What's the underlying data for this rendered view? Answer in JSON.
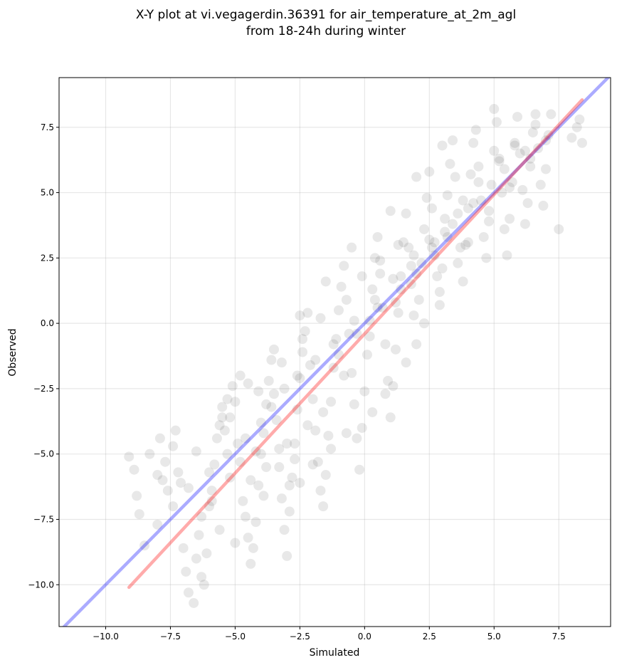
{
  "chart_data": {
    "type": "scatter",
    "title_line1": "X-Y plot at vi.vegagerdin.36391 for air_temperature_at_2m_agl",
    "title_line2": "from 18-24h during winter",
    "xlabel": "Simulated",
    "ylabel": "Observed",
    "xlim": [
      -11.8,
      9.5
    ],
    "ylim": [
      -11.6,
      9.4
    ],
    "xticks": [
      -10.0,
      -7.5,
      -5.0,
      -2.5,
      0.0,
      2.5,
      5.0,
      7.5
    ],
    "yticks": [
      -10.0,
      -7.5,
      -5.0,
      -2.5,
      0.0,
      2.5,
      5.0,
      7.5
    ],
    "xtick_labels": [
      "−10.0",
      "−7.5",
      "−5.0",
      "−2.5",
      "0.0",
      "2.5",
      "5.0",
      "7.5"
    ],
    "ytick_labels": [
      "−10.0",
      "−7.5",
      "−5.0",
      "−2.5",
      "0.0",
      "2.5",
      "5.0",
      "7.5"
    ],
    "grid": true,
    "point_color": "#000000",
    "point_alpha": 0.09,
    "identity_line": {
      "x": [
        -11.8,
        9.5
      ],
      "y": [
        -11.8,
        9.5
      ],
      "color": "#0000ff",
      "alpha": 0.33
    },
    "fit_line": {
      "x": [
        -9.1,
        8.4
      ],
      "y": [
        -10.1,
        8.55
      ],
      "color": "#ff0000",
      "alpha": 0.33
    },
    "points": [
      [
        -9.1,
        -5.1
      ],
      [
        -8.9,
        -5.6
      ],
      [
        -8.8,
        -6.6
      ],
      [
        -8.7,
        -7.3
      ],
      [
        -8.5,
        -8.5
      ],
      [
        -8.3,
        -5.0
      ],
      [
        -8.0,
        -5.8
      ],
      [
        -7.9,
        -4.4
      ],
      [
        -7.8,
        -6.0
      ],
      [
        -7.7,
        -5.3
      ],
      [
        -7.6,
        -6.4
      ],
      [
        -7.4,
        -4.7
      ],
      [
        -7.3,
        -4.1
      ],
      [
        -7.2,
        -5.7
      ],
      [
        -7.1,
        -6.1
      ],
      [
        -7.0,
        -8.6
      ],
      [
        -6.9,
        -9.5
      ],
      [
        -6.8,
        -10.3
      ],
      [
        -6.6,
        -10.7
      ],
      [
        -6.5,
        -9.0
      ],
      [
        -6.4,
        -8.1
      ],
      [
        -6.3,
        -9.7
      ],
      [
        -6.2,
        -10.0
      ],
      [
        -6.1,
        -8.8
      ],
      [
        -6.0,
        -7.0
      ],
      [
        -5.9,
        -6.4
      ],
      [
        -5.8,
        -5.4
      ],
      [
        -5.7,
        -4.4
      ],
      [
        -5.6,
        -3.9
      ],
      [
        -5.5,
        -3.2
      ],
      [
        -5.4,
        -4.1
      ],
      [
        -5.3,
        -2.9
      ],
      [
        -5.2,
        -3.6
      ],
      [
        -5.1,
        -2.4
      ],
      [
        -5.0,
        -3.0
      ],
      [
        -4.9,
        -4.6
      ],
      [
        -4.8,
        -2.0
      ],
      [
        -4.7,
        -6.8
      ],
      [
        -4.6,
        -7.4
      ],
      [
        -4.5,
        -8.2
      ],
      [
        -4.4,
        -9.2
      ],
      [
        -4.3,
        -8.6
      ],
      [
        -4.2,
        -7.6
      ],
      [
        -4.1,
        -6.2
      ],
      [
        -4.0,
        -5.0
      ],
      [
        -3.9,
        -4.2
      ],
      [
        -3.8,
        -3.1
      ],
      [
        -3.7,
        -2.2
      ],
      [
        -3.6,
        -1.4
      ],
      [
        -3.5,
        -2.7
      ],
      [
        -3.4,
        -3.7
      ],
      [
        -3.3,
        -5.5
      ],
      [
        -3.2,
        -6.7
      ],
      [
        -3.1,
        -7.9
      ],
      [
        -3.0,
        -8.9
      ],
      [
        -2.9,
        -7.2
      ],
      [
        -2.8,
        -5.9
      ],
      [
        -2.7,
        -4.6
      ],
      [
        -2.6,
        -3.3
      ],
      [
        -2.5,
        -2.1
      ],
      [
        -2.4,
        -1.1
      ],
      [
        -2.3,
        -0.3
      ],
      [
        -2.2,
        0.4
      ],
      [
        -2.1,
        -1.6
      ],
      [
        -2.0,
        -2.9
      ],
      [
        -1.9,
        -4.1
      ],
      [
        -1.8,
        -5.3
      ],
      [
        -1.7,
        -6.4
      ],
      [
        -1.6,
        -7.0
      ],
      [
        -1.5,
        -5.8
      ],
      [
        -1.4,
        -4.3
      ],
      [
        -1.3,
        -3.0
      ],
      [
        -1.2,
        -1.7
      ],
      [
        -1.1,
        -0.6
      ],
      [
        -1.0,
        0.5
      ],
      [
        -0.9,
        1.4
      ],
      [
        -0.8,
        2.2
      ],
      [
        -0.7,
        0.9
      ],
      [
        -0.6,
        -0.4
      ],
      [
        -0.5,
        -1.9
      ],
      [
        -0.4,
        -3.1
      ],
      [
        -0.3,
        -4.4
      ],
      [
        -0.2,
        -5.6
      ],
      [
        -0.1,
        -4.0
      ],
      [
        0.0,
        -2.6
      ],
      [
        0.1,
        -1.2
      ],
      [
        0.2,
        0.1
      ],
      [
        0.3,
        1.3
      ],
      [
        0.4,
        2.5
      ],
      [
        0.5,
        3.3
      ],
      [
        0.6,
        1.9
      ],
      [
        0.7,
        0.6
      ],
      [
        0.8,
        -0.8
      ],
      [
        0.9,
        -2.2
      ],
      [
        1.0,
        -3.6
      ],
      [
        1.1,
        -2.4
      ],
      [
        1.2,
        -1.0
      ],
      [
        1.3,
        0.4
      ],
      [
        1.4,
        1.8
      ],
      [
        1.5,
        3.1
      ],
      [
        1.6,
        4.2
      ],
      [
        1.7,
        2.9
      ],
      [
        1.8,
        1.5
      ],
      [
        1.9,
        0.3
      ],
      [
        2.0,
        -0.8
      ],
      [
        2.1,
        0.9
      ],
      [
        2.2,
        2.3
      ],
      [
        2.3,
        3.6
      ],
      [
        2.4,
        4.8
      ],
      [
        2.5,
        5.8
      ],
      [
        2.6,
        4.4
      ],
      [
        2.7,
        3.1
      ],
      [
        2.8,
        1.8
      ],
      [
        2.9,
        0.7
      ],
      [
        3.0,
        2.1
      ],
      [
        3.1,
        3.5
      ],
      [
        3.2,
        4.9
      ],
      [
        3.3,
        6.1
      ],
      [
        3.4,
        7.0
      ],
      [
        3.5,
        5.6
      ],
      [
        3.6,
        4.2
      ],
      [
        3.7,
        2.9
      ],
      [
        3.8,
        1.6
      ],
      [
        3.9,
        3.0
      ],
      [
        4.0,
        4.4
      ],
      [
        4.1,
        5.7
      ],
      [
        4.2,
        6.9
      ],
      [
        4.3,
        7.4
      ],
      [
        4.4,
        6.0
      ],
      [
        4.5,
        4.7
      ],
      [
        4.6,
        3.3
      ],
      [
        4.7,
        2.5
      ],
      [
        4.8,
        3.9
      ],
      [
        4.9,
        5.3
      ],
      [
        5.0,
        6.6
      ],
      [
        5.1,
        7.7
      ],
      [
        5.2,
        6.3
      ],
      [
        5.3,
        5.0
      ],
      [
        5.4,
        3.6
      ],
      [
        5.5,
        2.6
      ],
      [
        5.6,
        4.0
      ],
      [
        5.7,
        5.4
      ],
      [
        5.8,
        6.8
      ],
      [
        5.9,
        7.9
      ],
      [
        6.0,
        6.5
      ],
      [
        6.1,
        5.1
      ],
      [
        6.2,
        3.8
      ],
      [
        6.3,
        4.6
      ],
      [
        6.4,
        6.0
      ],
      [
        6.5,
        7.3
      ],
      [
        6.6,
        8.0
      ],
      [
        6.7,
        6.7
      ],
      [
        6.8,
        5.3
      ],
      [
        6.9,
        4.5
      ],
      [
        7.0,
        5.9
      ],
      [
        7.1,
        7.2
      ],
      [
        7.2,
        8.0
      ],
      [
        7.5,
        3.6
      ],
      [
        8.0,
        7.1
      ],
      [
        8.2,
        7.5
      ],
      [
        8.3,
        7.8
      ],
      [
        8.4,
        6.9
      ],
      [
        5.0,
        8.2
      ],
      [
        3.0,
        6.8
      ],
      [
        2.0,
        5.6
      ],
      [
        1.0,
        4.3
      ],
      [
        -0.5,
        2.9
      ],
      [
        -1.5,
        1.6
      ],
      [
        -2.5,
        0.3
      ],
      [
        -3.5,
        -1.0
      ],
      [
        -4.5,
        -2.3
      ],
      [
        -5.5,
        -3.6
      ],
      [
        -6.5,
        -4.9
      ],
      [
        -3.0,
        -4.6
      ],
      [
        -2.7,
        -5.2
      ],
      [
        -2.2,
        -3.9
      ],
      [
        -1.6,
        -3.4
      ],
      [
        -0.8,
        -2.0
      ],
      [
        0.2,
        -0.5
      ],
      [
        1.2,
        0.8
      ],
      [
        1.8,
        2.2
      ],
      [
        2.6,
        2.9
      ],
      [
        3.4,
        3.8
      ],
      [
        4.2,
        4.6
      ],
      [
        5.4,
        5.9
      ],
      [
        6.2,
        6.6
      ],
      [
        -4.2,
        -4.9
      ],
      [
        -3.8,
        -5.5
      ],
      [
        -3.3,
        -4.8
      ],
      [
        -2.9,
        -6.2
      ],
      [
        -4.8,
        -5.3
      ],
      [
        -5.2,
        -5.9
      ],
      [
        -5.9,
        -6.8
      ],
      [
        -6.3,
        -7.4
      ],
      [
        -5.6,
        -7.9
      ],
      [
        -5.0,
        -8.4
      ],
      [
        -4.4,
        -6.0
      ],
      [
        -3.9,
        -6.6
      ],
      [
        -2.5,
        -6.1
      ],
      [
        -2.0,
        -5.4
      ],
      [
        -1.3,
        -4.8
      ],
      [
        -0.7,
        -4.2
      ],
      [
        0.3,
        -3.4
      ],
      [
        0.8,
        -2.7
      ],
      [
        1.6,
        -1.5
      ],
      [
        2.3,
        0.0
      ],
      [
        2.9,
        1.2
      ],
      [
        3.6,
        2.3
      ],
      [
        4.0,
        3.1
      ],
      [
        4.8,
        4.3
      ],
      [
        5.6,
        5.2
      ],
      [
        6.4,
        6.3
      ],
      [
        7.0,
        7.0
      ],
      [
        -1.0,
        -1.2
      ],
      [
        -0.3,
        -0.4
      ],
      [
        0.5,
        0.6
      ],
      [
        1.4,
        1.3
      ],
      [
        2.0,
        1.9
      ],
      [
        2.7,
        2.6
      ],
      [
        3.2,
        3.3
      ],
      [
        -2.6,
        -2.0
      ],
      [
        -3.1,
        -2.5
      ],
      [
        -3.6,
        -3.2
      ],
      [
        -4.0,
        -3.8
      ],
      [
        -4.6,
        -4.4
      ],
      [
        -5.3,
        -5.0
      ],
      [
        -6.0,
        -5.7
      ],
      [
        -6.8,
        -6.3
      ],
      [
        -7.4,
        -7.0
      ],
      [
        -8.0,
        -7.7
      ],
      [
        -1.9,
        -1.4
      ],
      [
        -1.2,
        -0.8
      ],
      [
        -0.4,
        0.1
      ],
      [
        0.4,
        0.9
      ],
      [
        1.1,
        1.7
      ],
      [
        1.9,
        2.6
      ],
      [
        2.5,
        3.2
      ],
      [
        3.1,
        4.0
      ],
      [
        3.8,
        4.7
      ],
      [
        4.4,
        5.4
      ],
      [
        5.2,
        6.2
      ],
      [
        5.8,
        6.9
      ],
      [
        6.6,
        7.6
      ],
      [
        -0.1,
        1.8
      ],
      [
        0.6,
        2.4
      ],
      [
        1.3,
        3.0
      ],
      [
        -1.7,
        0.2
      ],
      [
        -2.4,
        -0.6
      ],
      [
        -3.2,
        -1.5
      ],
      [
        -4.1,
        -2.6
      ]
    ]
  }
}
